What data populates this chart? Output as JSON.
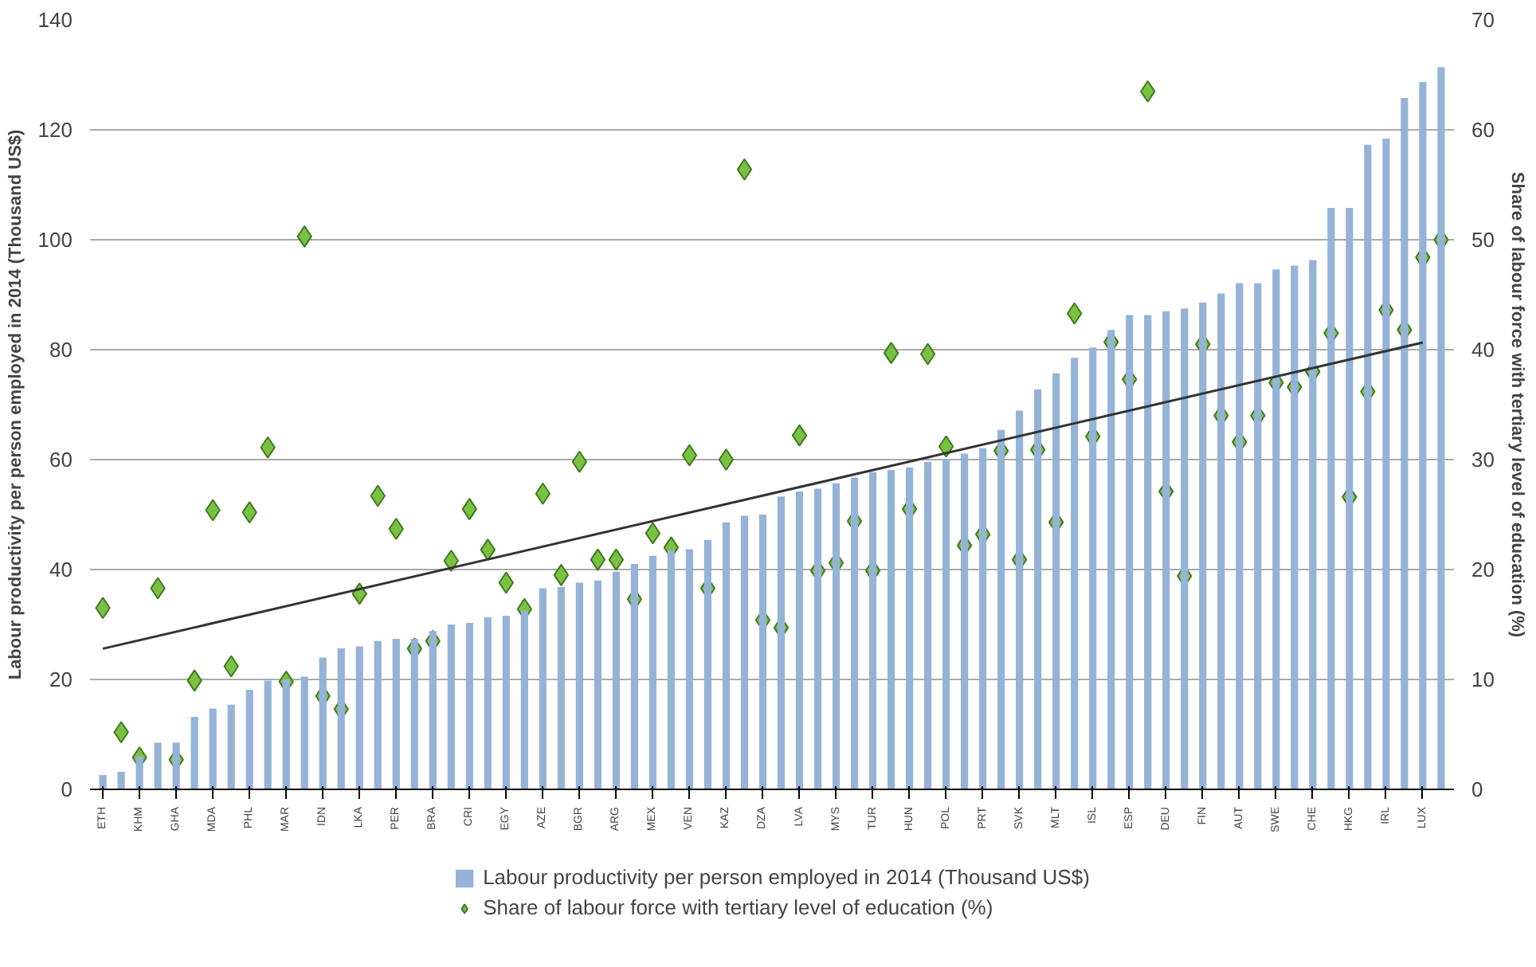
{
  "chart_data": {
    "type": "bar",
    "ylabel": "Labour productivity per person employed in 2014 (Thousand US$)",
    "y2label": "Share of labour force with tertiary level of education (%)",
    "categories": [
      "ETH",
      null,
      "KHM",
      null,
      "GHA",
      null,
      "MDA",
      null,
      "PHL",
      null,
      "MAR",
      null,
      "IDN",
      null,
      "LKA",
      null,
      "PER",
      null,
      "BRA",
      null,
      "CRI",
      null,
      "EGY",
      null,
      "AZE",
      null,
      "BGR",
      null,
      "ARG",
      null,
      "MEX",
      null,
      "VEN",
      null,
      "KAZ",
      null,
      "DZA",
      null,
      "LVA",
      null,
      "MYS",
      null,
      "TUR",
      null,
      "HUN",
      null,
      "POL",
      null,
      "PRT",
      null,
      "SVK",
      null,
      "MLT",
      null,
      "ISL",
      null,
      "ESP",
      null,
      "DEU",
      null,
      "FIN",
      null,
      "AUT",
      null,
      "SWE",
      null,
      "CHE",
      null,
      "HKG",
      null,
      "IRL",
      null,
      "LUX",
      null
    ],
    "series": [
      {
        "name": "Labour productivity per person employed in 2014 (Thousand US$)",
        "color": "#95b3d7",
        "values": [
          2.6,
          3.2,
          6,
          8.5,
          8.5,
          13.2,
          14.7,
          15.4,
          18.1,
          19.8,
          20.0,
          20.5,
          24,
          25.7,
          26,
          27,
          27.4,
          27.4,
          28.8,
          30,
          30.3,
          31.3,
          31.6,
          32.5,
          36.6,
          36.8,
          37.6,
          38.0,
          39.6,
          41.0,
          42.5,
          43.5,
          43.7,
          45.4,
          48.6,
          49.8,
          50.0,
          53.3,
          54.2,
          54.7,
          55.7,
          56.7,
          57.7,
          58.1,
          58.6,
          59.6,
          60.1,
          61.1,
          62.1,
          65.4,
          68.9,
          72.8,
          75.7,
          78.5,
          80.4,
          83.6,
          86.3,
          86.3,
          87.0,
          87.5,
          88.6,
          90.2,
          92.1,
          92.1,
          94.6,
          95.3,
          96.3,
          105.8,
          105.8,
          117.3,
          118.4,
          125.8,
          128.7,
          131.4
        ]
      },
      {
        "name": "Share of labour force with tertiary level of education (%)",
        "type": "scatter",
        "axis": "y2",
        "marker": "diamond",
        "color": "#7ac143",
        "values": [
          16.5,
          5.2,
          2.9,
          18.3,
          2.7,
          9.9,
          25.4,
          11.2,
          25.2,
          31.1,
          9.8,
          50.3,
          8.5,
          7.3,
          17.8,
          26.7,
          23.7,
          12.8,
          13.5,
          20.8,
          25.5,
          21.8,
          18.8,
          16.4,
          26.9,
          19.5,
          29.8,
          20.9,
          20.9,
          17.3,
          23.3,
          22.0,
          30.4,
          18.3,
          30.0,
          56.4,
          15.4,
          14.7,
          32.2,
          19.9,
          20.6,
          24.4,
          19.9,
          39.7,
          25.5,
          39.6,
          31.2,
          22.2,
          23.2,
          30.8,
          20.9,
          30.9,
          24.3,
          43.3,
          32.1,
          40.7,
          37.3,
          63.5,
          27.1,
          19.4,
          40.5,
          34.0,
          31.6,
          34.0,
          37.0,
          36.6,
          38.0,
          41.5,
          26.6,
          36.2,
          43.6,
          41.8,
          48.4,
          50.0
        ]
      },
      {
        "type": "line",
        "color": "#333333",
        "x": [
          "ETH",
          "LUX"
        ],
        "values": [
          25.6,
          81.3
        ]
      }
    ],
    "ylim": [
      0,
      140
    ],
    "yticks": [
      0,
      20,
      40,
      60,
      80,
      100,
      120,
      140
    ],
    "y2lim": [
      0,
      70
    ],
    "y2ticks": [
      0,
      10,
      20,
      30,
      40,
      50,
      60,
      70
    ],
    "grid": "y",
    "legend": "bottom"
  }
}
